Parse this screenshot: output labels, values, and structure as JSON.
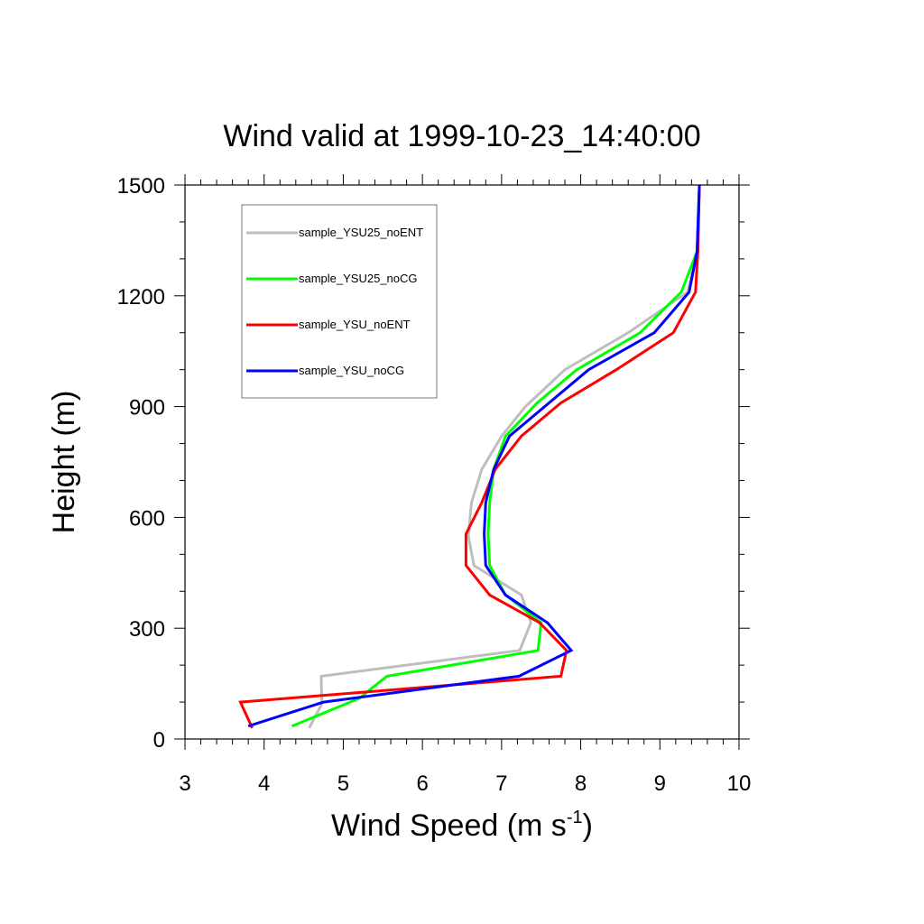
{
  "chart_data": {
    "type": "line",
    "title": "Wind valid at 1999-10-23_14:40:00",
    "xlabel": "Wind Speed (m s",
    "xlabel_sup": "-1",
    "xlabel_close": ")",
    "ylabel": "Height (m)",
    "xlim": [
      3,
      10
    ],
    "ylim": [
      0,
      1500
    ],
    "xticks": [
      "3",
      "4",
      "5",
      "6",
      "7",
      "8",
      "9",
      "10"
    ],
    "yticks": [
      "0",
      "300",
      "600",
      "900",
      "1200",
      "1500"
    ],
    "legend_position": "top-left",
    "grid": false,
    "series": [
      {
        "name": "sample_YSU25_noENT",
        "color": "#bebebe",
        "points": [
          [
            4.57,
            30
          ],
          [
            4.73,
            95
          ],
          [
            4.72,
            170
          ],
          [
            7.23,
            240
          ],
          [
            7.37,
            315
          ],
          [
            7.25,
            390
          ],
          [
            6.65,
            470
          ],
          [
            6.58,
            550
          ],
          [
            6.62,
            640
          ],
          [
            6.75,
            730
          ],
          [
            7.0,
            820
          ],
          [
            7.3,
            900
          ],
          [
            7.8,
            1000
          ],
          [
            8.6,
            1100
          ],
          [
            9.35,
            1210
          ],
          [
            9.47,
            1320
          ],
          [
            9.5,
            1500
          ]
        ]
      },
      {
        "name": "sample_YSU25_noCG",
        "color": "#00ff00",
        "points": [
          [
            4.35,
            35
          ],
          [
            5.2,
            110
          ],
          [
            5.55,
            170
          ],
          [
            7.46,
            240
          ],
          [
            7.5,
            315
          ],
          [
            7.05,
            390
          ],
          [
            6.85,
            470
          ],
          [
            6.83,
            555
          ],
          [
            6.85,
            640
          ],
          [
            6.9,
            730
          ],
          [
            7.05,
            820
          ],
          [
            7.45,
            910
          ],
          [
            7.95,
            1000
          ],
          [
            8.75,
            1100
          ],
          [
            9.27,
            1210
          ],
          [
            9.47,
            1320
          ],
          [
            9.5,
            1500
          ]
        ]
      },
      {
        "name": "sample_YSU_noENT",
        "color": "#ff0000",
        "points": [
          [
            3.85,
            30
          ],
          [
            3.7,
            100
          ],
          [
            7.75,
            170
          ],
          [
            7.82,
            240
          ],
          [
            7.48,
            315
          ],
          [
            6.85,
            390
          ],
          [
            6.55,
            470
          ],
          [
            6.55,
            555
          ],
          [
            6.75,
            640
          ],
          [
            6.92,
            730
          ],
          [
            7.25,
            820
          ],
          [
            7.75,
            910
          ],
          [
            8.45,
            1000
          ],
          [
            9.17,
            1100
          ],
          [
            9.45,
            1210
          ],
          [
            9.48,
            1320
          ],
          [
            9.5,
            1500
          ]
        ]
      },
      {
        "name": "sample_YSU_noCG",
        "color": "#0000ff",
        "points": [
          [
            3.8,
            35
          ],
          [
            4.75,
            100
          ],
          [
            7.22,
            170
          ],
          [
            7.88,
            240
          ],
          [
            7.58,
            315
          ],
          [
            7.05,
            390
          ],
          [
            6.8,
            470
          ],
          [
            6.78,
            555
          ],
          [
            6.8,
            640
          ],
          [
            6.9,
            730
          ],
          [
            7.1,
            820
          ],
          [
            7.6,
            910
          ],
          [
            8.1,
            1000
          ],
          [
            8.93,
            1100
          ],
          [
            9.37,
            1210
          ],
          [
            9.47,
            1320
          ],
          [
            9.5,
            1500
          ]
        ]
      }
    ]
  }
}
